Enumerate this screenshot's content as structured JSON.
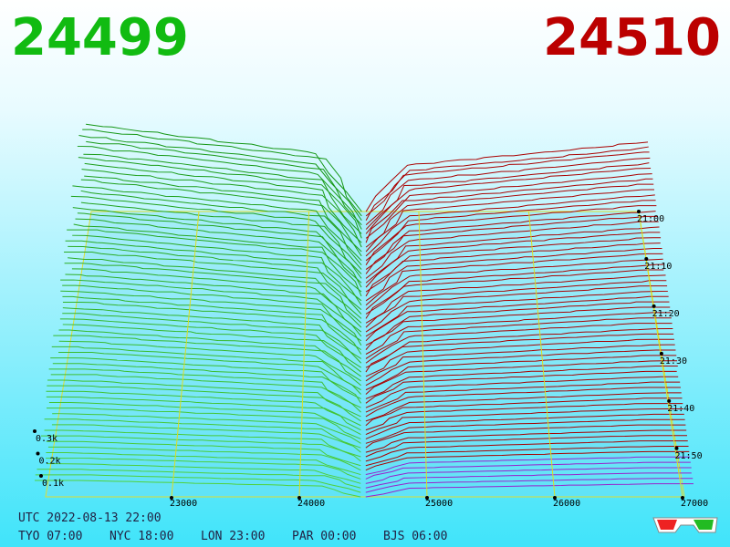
{
  "header": {
    "bid": "24499",
    "ask": "24510"
  },
  "price_axis": {
    "ticks": [
      23000,
      24000,
      25000,
      26000,
      27000
    ]
  },
  "time_axis": {
    "ticks": [
      "21:00",
      "21:10",
      "21:20",
      "21:30",
      "21:40",
      "21:50"
    ]
  },
  "volume_axis": {
    "ticks": [
      "0.1k",
      "0.2k",
      "0.3k"
    ]
  },
  "footer": {
    "utc": "UTC 2022-08-13 22:00",
    "zones": [
      "TYO 07:00",
      "NYC 18:00",
      "LON 23:00",
      "PAR 00:00",
      "BJS 06:00"
    ]
  }
}
